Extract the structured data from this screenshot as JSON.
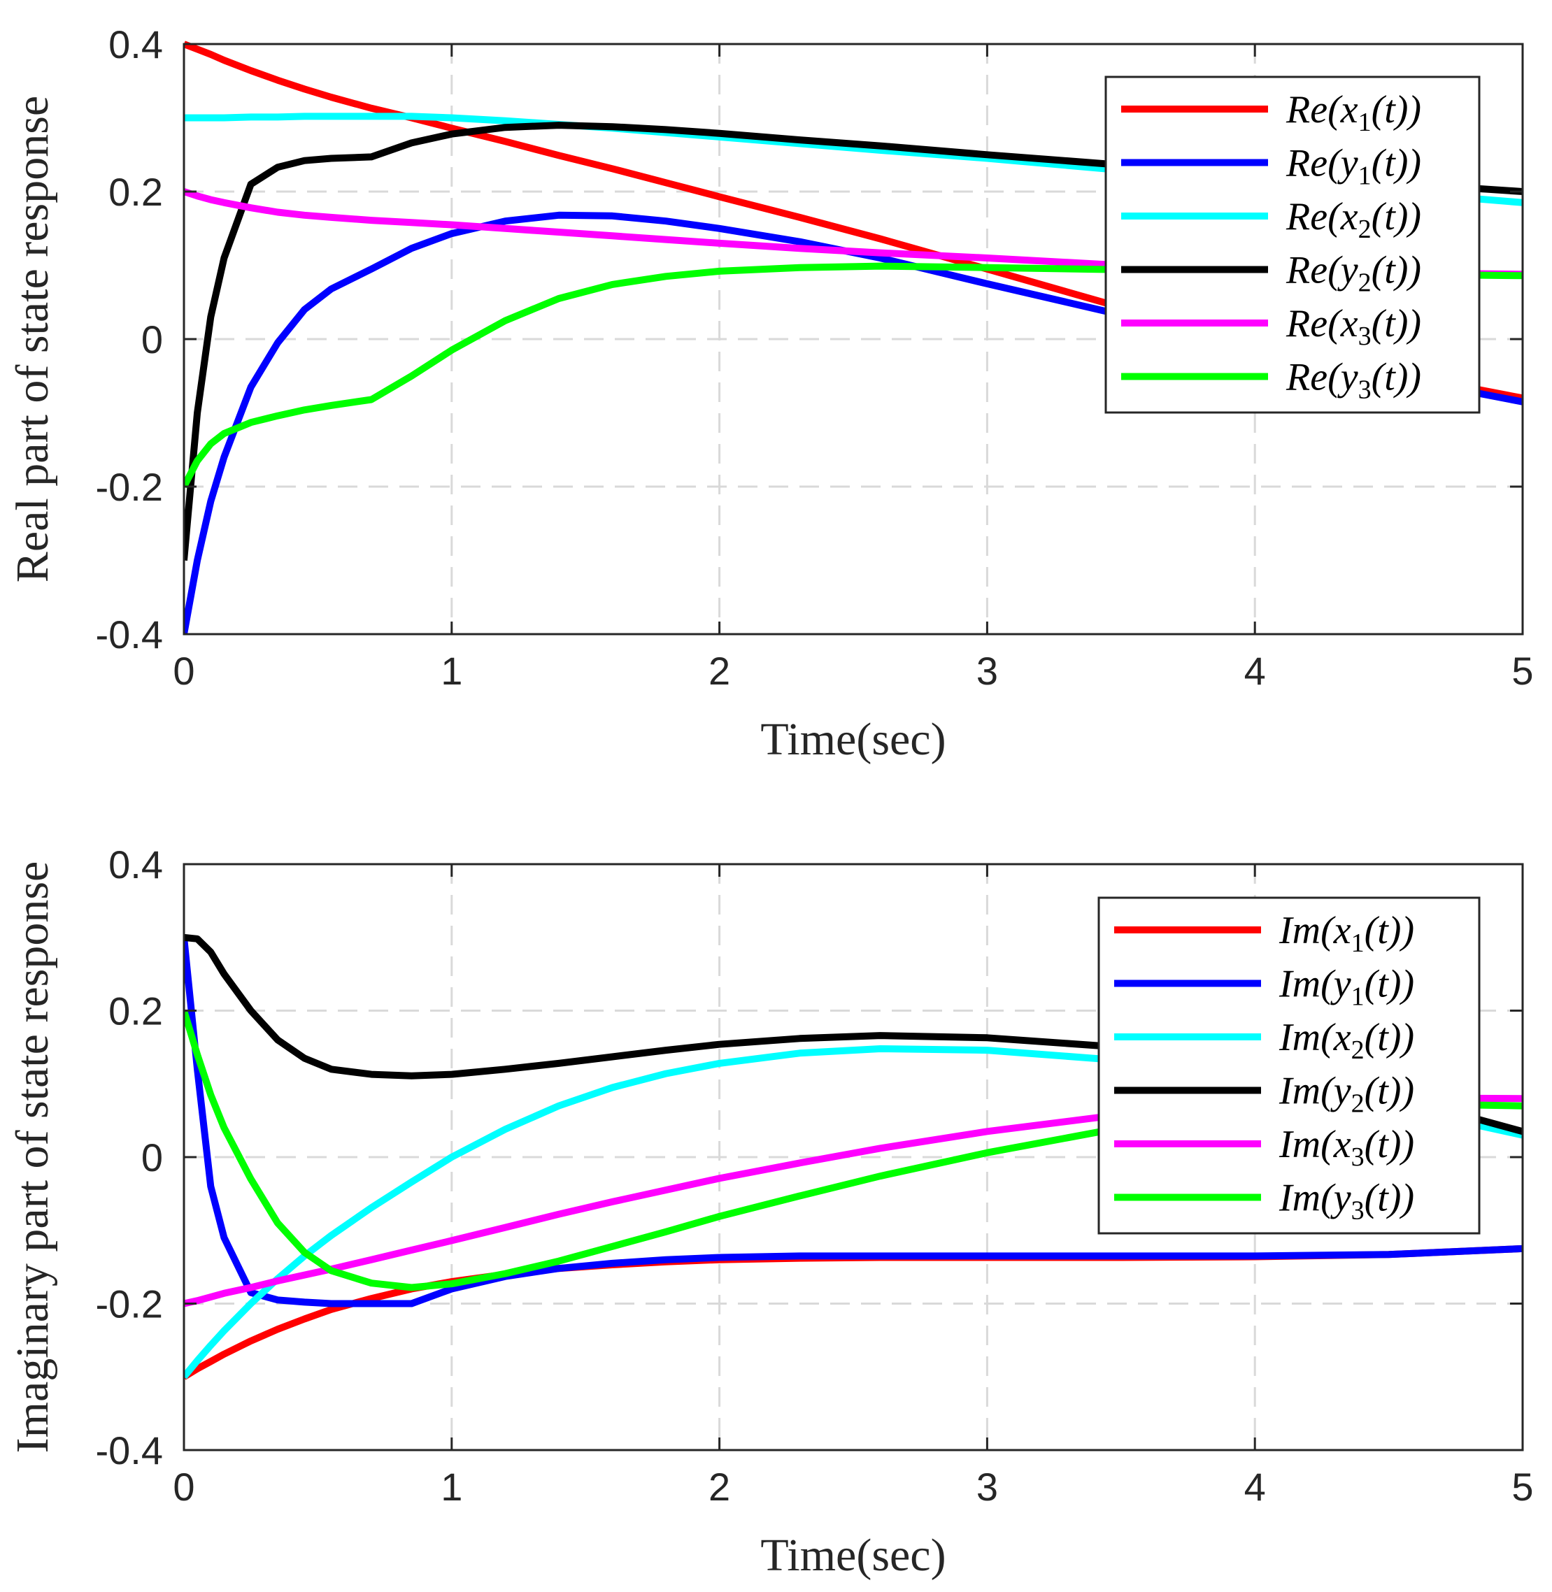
{
  "chart_data": [
    {
      "type": "line",
      "title": "",
      "xlabel": "Time(sec)",
      "ylabel": "Real part of state response",
      "xlim": [
        0,
        5
      ],
      "ylim": [
        -0.4,
        0.4
      ],
      "xticks": [
        "0",
        "1",
        "2",
        "3",
        "4",
        "5"
      ],
      "yticks": [
        "-0.4",
        "-0.2",
        "0",
        "0.2",
        "0.4"
      ],
      "grid": true,
      "legend_position": "top-right",
      "x": [
        0,
        0.05,
        0.1,
        0.15,
        0.25,
        0.35,
        0.45,
        0.55,
        0.7,
        0.85,
        1.0,
        1.2,
        1.4,
        1.6,
        1.8,
        2.0,
        2.3,
        2.6,
        3.0,
        3.5,
        4.0,
        4.5,
        5.0
      ],
      "series": [
        {
          "name": "Re(x1(t))",
          "legend_prefix": "Re(x",
          "legend_sub": "1",
          "legend_suffix": "(t))",
          "color": "#ff0000",
          "values": [
            0.4,
            0.393,
            0.386,
            0.378,
            0.364,
            0.351,
            0.339,
            0.328,
            0.313,
            0.3,
            0.286,
            0.268,
            0.249,
            0.231,
            0.212,
            0.193,
            0.165,
            0.136,
            0.095,
            0.043,
            -0.005,
            -0.045,
            -0.08
          ]
        },
        {
          "name": "Re(y1(t))",
          "legend_prefix": "Re(y",
          "legend_sub": "1",
          "legend_suffix": "(t))",
          "color": "#0000ff",
          "values": [
            -0.4,
            -0.3,
            -0.22,
            -0.16,
            -0.065,
            -0.005,
            0.04,
            0.068,
            0.095,
            0.123,
            0.143,
            0.16,
            0.168,
            0.167,
            0.16,
            0.15,
            0.132,
            0.11,
            0.075,
            0.033,
            -0.01,
            -0.05,
            -0.085
          ]
        },
        {
          "name": "Re(x2(t))",
          "legend_prefix": "Re(x",
          "legend_sub": "2",
          "legend_suffix": "(t))",
          "color": "#00ffff",
          "values": [
            0.3,
            0.3,
            0.3,
            0.3,
            0.301,
            0.301,
            0.302,
            0.302,
            0.302,
            0.302,
            0.3,
            0.296,
            0.291,
            0.286,
            0.28,
            0.274,
            0.265,
            0.256,
            0.245,
            0.229,
            0.214,
            0.2,
            0.185
          ]
        },
        {
          "name": "Re(y2(t))",
          "legend_prefix": "Re(y",
          "legend_sub": "2",
          "legend_suffix": "(t))",
          "color": "#000000",
          "values": [
            -0.3,
            -0.1,
            0.03,
            0.11,
            0.21,
            0.233,
            0.242,
            0.245,
            0.247,
            0.266,
            0.278,
            0.287,
            0.29,
            0.288,
            0.284,
            0.279,
            0.27,
            0.262,
            0.25,
            0.236,
            0.224,
            0.212,
            0.2
          ]
        },
        {
          "name": "Re(x3(t))",
          "legend_prefix": "Re(x",
          "legend_sub": "3",
          "legend_suffix": "(t))",
          "color": "#ff00ff",
          "values": [
            0.2,
            0.194,
            0.189,
            0.185,
            0.178,
            0.172,
            0.168,
            0.165,
            0.161,
            0.158,
            0.155,
            0.15,
            0.145,
            0.14,
            0.135,
            0.13,
            0.123,
            0.117,
            0.11,
            0.1,
            0.094,
            0.09,
            0.088
          ]
        },
        {
          "name": "Re(y3(t))",
          "legend_prefix": "Re(y",
          "legend_sub": "3",
          "legend_suffix": "(t))",
          "color": "#00ff00",
          "values": [
            -0.2,
            -0.165,
            -0.142,
            -0.128,
            -0.113,
            -0.104,
            -0.096,
            -0.09,
            -0.082,
            -0.05,
            -0.015,
            0.025,
            0.055,
            0.074,
            0.085,
            0.092,
            0.097,
            0.099,
            0.097,
            0.094,
            0.091,
            0.088,
            0.086
          ]
        }
      ]
    },
    {
      "type": "line",
      "title": "",
      "xlabel": "Time(sec)",
      "ylabel": "Imaginary part of state response",
      "xlim": [
        0,
        5
      ],
      "ylim": [
        -0.4,
        0.4
      ],
      "xticks": [
        "0",
        "1",
        "2",
        "3",
        "4",
        "5"
      ],
      "yticks": [
        "-0.4",
        "-0.2",
        "0",
        "0.2",
        "0.4"
      ],
      "grid": true,
      "legend_position": "top-right",
      "x": [
        0,
        0.05,
        0.1,
        0.15,
        0.25,
        0.35,
        0.45,
        0.55,
        0.7,
        0.85,
        1.0,
        1.2,
        1.4,
        1.6,
        1.8,
        2.0,
        2.3,
        2.6,
        3.0,
        3.5,
        4.0,
        4.5,
        5.0
      ],
      "series": [
        {
          "name": "Im(x1(t))",
          "legend_prefix": "Im(x",
          "legend_sub": "1",
          "legend_suffix": "(t))",
          "color": "#ff0000",
          "values": [
            -0.3,
            -0.289,
            -0.279,
            -0.269,
            -0.251,
            -0.235,
            -0.221,
            -0.208,
            -0.193,
            -0.18,
            -0.17,
            -0.16,
            -0.152,
            -0.147,
            -0.143,
            -0.14,
            -0.138,
            -0.137,
            -0.137,
            -0.137,
            -0.136,
            -0.133,
            -0.125
          ]
        },
        {
          "name": "Im(y1(t))",
          "legend_prefix": "Im(y",
          "legend_sub": "1",
          "legend_suffix": "(t))",
          "color": "#0000ff",
          "values": [
            0.3,
            0.12,
            -0.04,
            -0.11,
            -0.185,
            -0.195,
            -0.198,
            -0.2,
            -0.2,
            -0.2,
            -0.18,
            -0.163,
            -0.152,
            -0.145,
            -0.14,
            -0.137,
            -0.135,
            -0.135,
            -0.135,
            -0.135,
            -0.135,
            -0.133,
            -0.125
          ]
        },
        {
          "name": "Im(x2(t))",
          "legend_prefix": "Im(x",
          "legend_sub": "2",
          "legend_suffix": "(t))",
          "color": "#00ffff",
          "values": [
            -0.3,
            -0.278,
            -0.257,
            -0.237,
            -0.2,
            -0.166,
            -0.135,
            -0.107,
            -0.069,
            -0.034,
            0.0,
            0.038,
            0.07,
            0.095,
            0.114,
            0.128,
            0.142,
            0.148,
            0.146,
            0.132,
            0.105,
            0.07,
            0.03
          ]
        },
        {
          "name": "Im(y2(t))",
          "legend_prefix": "Im(y",
          "legend_sub": "2",
          "legend_suffix": "(t))",
          "color": "#000000",
          "values": [
            0.3,
            0.298,
            0.28,
            0.25,
            0.2,
            0.16,
            0.135,
            0.12,
            0.113,
            0.111,
            0.113,
            0.12,
            0.128,
            0.137,
            0.146,
            0.154,
            0.162,
            0.166,
            0.163,
            0.15,
            0.126,
            0.085,
            0.035
          ]
        },
        {
          "name": "Im(x3(t))",
          "legend_prefix": "Im(x",
          "legend_sub": "3",
          "legend_suffix": "(t))",
          "color": "#ff00ff",
          "values": [
            -0.2,
            -0.196,
            -0.191,
            -0.186,
            -0.178,
            -0.169,
            -0.161,
            -0.153,
            -0.14,
            -0.127,
            -0.114,
            -0.096,
            -0.078,
            -0.061,
            -0.045,
            -0.029,
            -0.008,
            0.012,
            0.035,
            0.058,
            0.073,
            0.081,
            0.08
          ]
        },
        {
          "name": "Im(y3(t))",
          "legend_prefix": "Im(y",
          "legend_sub": "3",
          "legend_suffix": "(t))",
          "color": "#00ff00",
          "values": [
            0.2,
            0.14,
            0.085,
            0.04,
            -0.03,
            -0.09,
            -0.13,
            -0.155,
            -0.172,
            -0.178,
            -0.173,
            -0.159,
            -0.142,
            -0.122,
            -0.102,
            -0.081,
            -0.053,
            -0.026,
            0.006,
            0.04,
            0.063,
            0.073,
            0.07
          ]
        }
      ]
    }
  ]
}
